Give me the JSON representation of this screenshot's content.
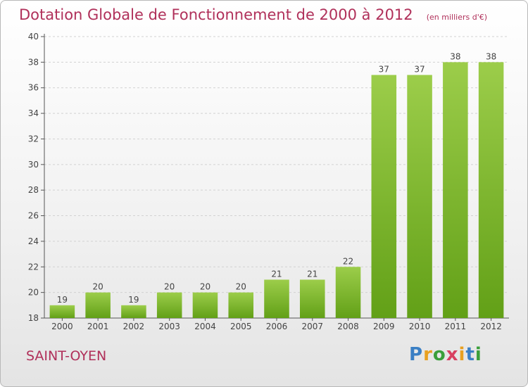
{
  "chart_data": {
    "type": "bar",
    "title": "Dotation Globale de Fonctionnement de 2000 à 2012",
    "subtitle": "(en milliers d'€)",
    "categories": [
      "2000",
      "2001",
      "2002",
      "2003",
      "2004",
      "2005",
      "2006",
      "2007",
      "2008",
      "2009",
      "2010",
      "2011",
      "2012"
    ],
    "values": [
      19,
      20,
      19,
      20,
      20,
      20,
      21,
      21,
      22,
      37,
      37,
      38,
      38
    ],
    "ylim": [
      18,
      40
    ],
    "yticks": [
      18,
      20,
      22,
      24,
      26,
      28,
      30,
      32,
      34,
      36,
      38,
      40
    ],
    "grid": true,
    "bar_color": "#8cc63f"
  },
  "place": "SAINT-OYEN",
  "logo": {
    "text": "Proxiti"
  }
}
